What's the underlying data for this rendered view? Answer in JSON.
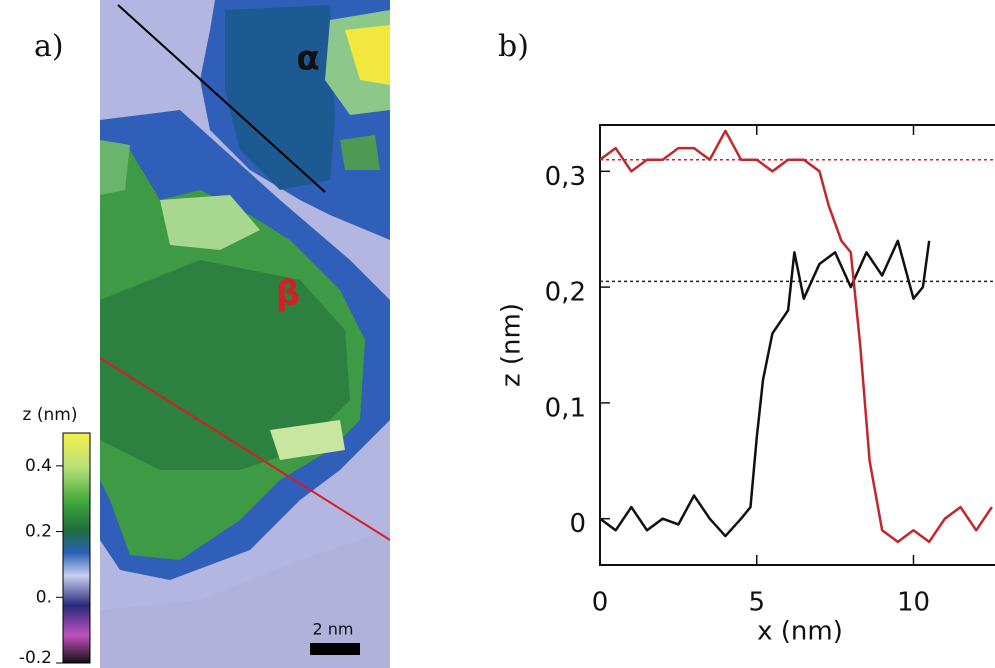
{
  "panel_a": {
    "label": "a)",
    "alpha": "α",
    "beta": "β",
    "scale_bar": "2 nm",
    "colorbar": {
      "title": "z (nm)",
      "clim": [
        -0.2,
        0.5
      ],
      "ticks": [
        0.4,
        0.2,
        {
          "value": 0,
          "label": "0."
        },
        -0.2
      ]
    }
  },
  "panel_b": {
    "label": "b)"
  },
  "chart_data": {
    "type": "line",
    "xlabel": "x (nm)",
    "ylabel": "z (nm)",
    "xlim": [
      0,
      12.6
    ],
    "ylim": [
      -0.04,
      0.34
    ],
    "xticks": [
      0,
      5,
      10
    ],
    "yticks": [
      0,
      {
        "value": 0.1,
        "label": "0,1"
      },
      {
        "value": 0.2,
        "label": "0,2"
      },
      {
        "value": 0.3,
        "label": "0,3"
      }
    ],
    "hlines": [
      {
        "value": 0.31,
        "color": "#c0282d"
      },
      {
        "value": 0.205,
        "color": "#222222"
      }
    ],
    "series": [
      {
        "color": "#111111",
        "x": [
          0,
          0.5,
          1,
          1.5,
          2,
          2.5,
          3,
          3.5,
          4,
          4.5,
          4.8,
          5,
          5.2,
          5.5,
          6,
          6.2,
          6.5,
          7,
          7.5,
          8,
          8.5,
          9,
          9.5,
          10,
          10.3,
          10.5
        ],
        "values": [
          0.0,
          -0.01,
          0.01,
          -0.01,
          0.0,
          -0.005,
          0.02,
          0.0,
          -0.015,
          0.0,
          0.01,
          0.07,
          0.12,
          0.16,
          0.18,
          0.23,
          0.19,
          0.22,
          0.23,
          0.2,
          0.23,
          0.21,
          0.24,
          0.19,
          0.2,
          0.24
        ]
      },
      {
        "color": "#c0282d",
        "x": [
          0,
          0.5,
          1,
          1.5,
          2,
          2.5,
          3,
          3.5,
          4,
          4.5,
          5,
          5.5,
          6,
          6.5,
          7,
          7.3,
          7.7,
          8,
          8.3,
          8.6,
          9,
          9.5,
          10,
          10.5,
          11,
          11.5,
          12,
          12.5
        ],
        "values": [
          0.31,
          0.32,
          0.3,
          0.31,
          0.31,
          0.32,
          0.32,
          0.31,
          0.335,
          0.31,
          0.31,
          0.3,
          0.31,
          0.31,
          0.3,
          0.27,
          0.24,
          0.23,
          0.15,
          0.05,
          -0.01,
          -0.02,
          -0.01,
          -0.02,
          0.0,
          0.01,
          -0.01,
          0.01
        ]
      }
    ]
  }
}
